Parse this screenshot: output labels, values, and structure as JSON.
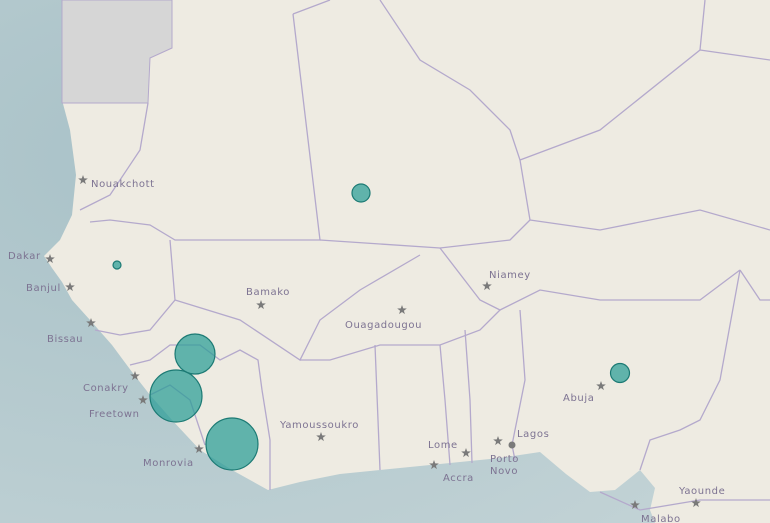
{
  "cities": [
    "Nouakchott",
    "Dakar",
    "Banjul",
    "Bissau",
    "Conakry",
    "Freetown",
    "Monrovia",
    "Bamako",
    "Ouagadougou",
    "Niamey",
    "Yamoussoukro",
    "Abuja",
    "Lome",
    "Accra",
    "Lagos",
    "Porto",
    "Novo",
    "Yaounde",
    "Malabo"
  ]
}
